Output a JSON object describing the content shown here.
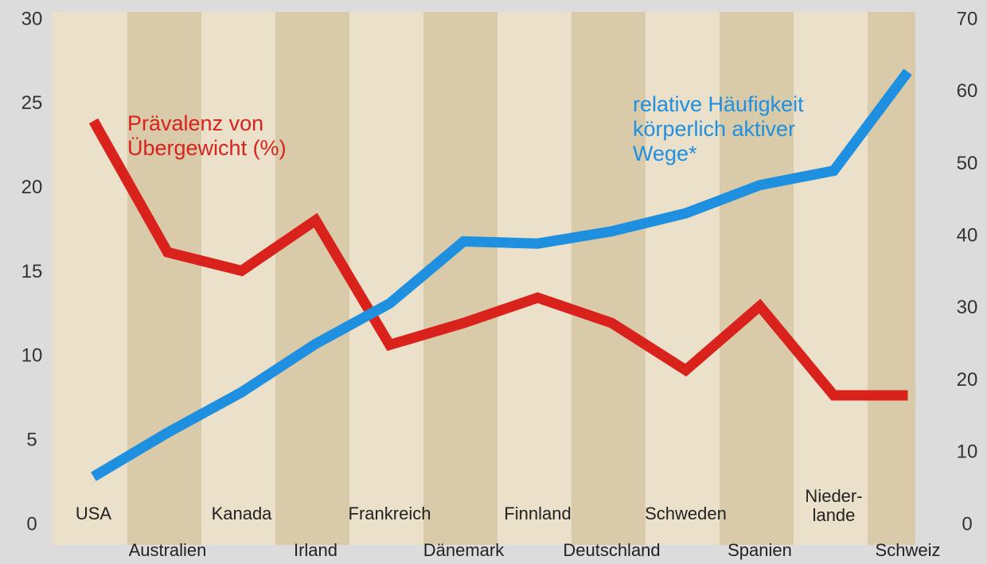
{
  "chart_data": {
    "type": "line",
    "categories": [
      "USA",
      "Australien",
      "Kanada",
      "Irland",
      "Frankreich",
      "Dänemark",
      "Finnland",
      "Deutschland",
      "Schweden",
      "Spanien",
      "Nieder-\nlande",
      "Schweiz"
    ],
    "series": [
      {
        "name": "Prävalenz von\nÜbergewicht (%)",
        "color": "#d9221c",
        "values": [
          24,
          16.2,
          15.1,
          18.1,
          10.7,
          12,
          13.5,
          12,
          9.2,
          13,
          7.7,
          7.7
        ]
      },
      {
        "name": "relative Häufigkeit\nkörperlich aktiver\nWege*",
        "color": "#1f8fe0",
        "axis": "y2",
        "values": [
          6.7,
          12.8,
          18.4,
          25.1,
          30.7,
          39.3,
          39,
          40.7,
          43.2,
          47.1,
          49.1,
          62.8
        ]
      }
    ],
    "ylim": [
      0,
      30
    ],
    "yticks": [
      0,
      5,
      10,
      15,
      20,
      25,
      30
    ],
    "y2lim": [
      0,
      70
    ],
    "y2ticks": [
      0,
      10,
      20,
      30,
      40,
      50,
      60,
      70
    ]
  }
}
